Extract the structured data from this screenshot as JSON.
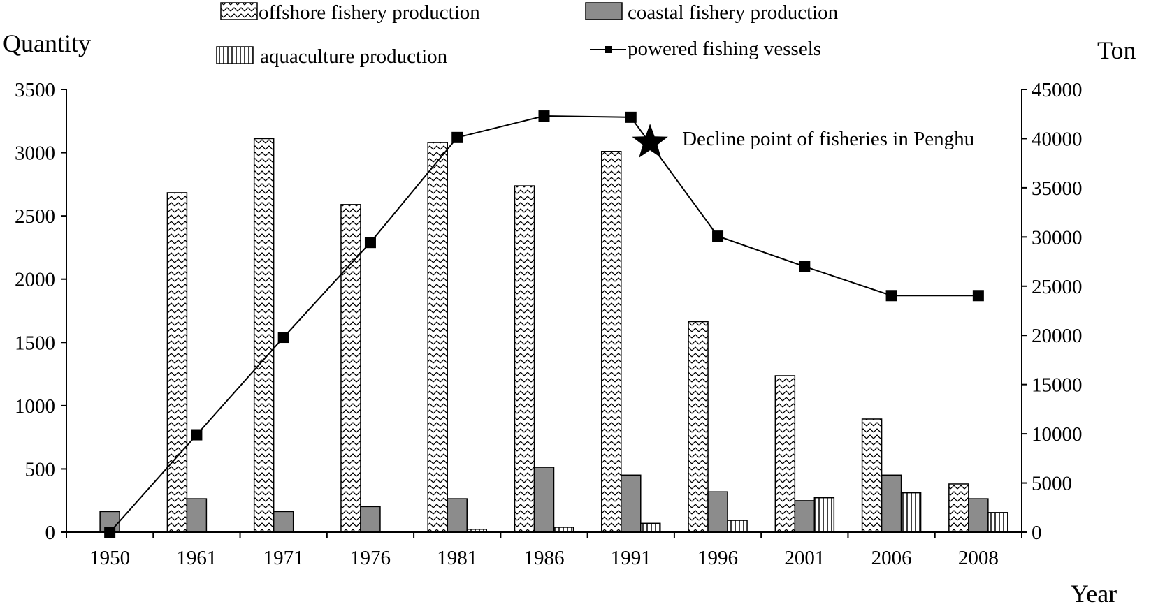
{
  "chart_data": {
    "type": "bar",
    "xlabel": "Year",
    "ylabel_left": "Quantity",
    "ylabel_right": "Ton",
    "categories": [
      "1950",
      "1961",
      "1971",
      "1976",
      "1981",
      "1986",
      "1991",
      "1996",
      "2001",
      "2006",
      "2008"
    ],
    "y_left": {
      "ylim": [
        0,
        3500
      ],
      "ticks": [
        "0",
        "500",
        "1000",
        "1500",
        "2000",
        "2500",
        "3000",
        "3500"
      ]
    },
    "y_right": {
      "ylim": [
        0,
        45000
      ],
      "ticks": [
        "0",
        "5000",
        "10000",
        "15000",
        "20000",
        "25000",
        "30000",
        "35000",
        "40000",
        "45000"
      ]
    },
    "series": [
      {
        "name": "offshore fishery production",
        "kind": "bar",
        "axis": "right",
        "fill": "zigzag",
        "values": [
          0,
          34500,
          40000,
          33300,
          39600,
          35200,
          38700,
          21400,
          15900,
          11500,
          4900
        ]
      },
      {
        "name": "coastal fishery production",
        "kind": "bar",
        "axis": "right",
        "fill": "gray",
        "values": [
          2100,
          3400,
          2100,
          2600,
          3400,
          6600,
          5800,
          4100,
          3200,
          5800,
          3400
        ]
      },
      {
        "name": "aquaculture production",
        "kind": "bar",
        "axis": "right",
        "fill": "vertical-stripes",
        "values": [
          0,
          0,
          0,
          0,
          300,
          500,
          900,
          1200,
          3500,
          4000,
          2000
        ]
      },
      {
        "name": "powered fishing vessels",
        "kind": "line",
        "axis": "left",
        "x": [
          "1950",
          "1961",
          "1971",
          "1976",
          "1981",
          "1986",
          "1991",
          "1996",
          "2001",
          "2006",
          "2008"
        ],
        "values": [
          0,
          770,
          1540,
          2290,
          3120,
          3290,
          3280,
          2340,
          2100,
          1870,
          1870
        ]
      }
    ],
    "annotation": {
      "text": "Decline point of fisheries in Penghu",
      "marker": "star",
      "x_between": [
        "1991",
        "1996"
      ],
      "y_left": 3080
    },
    "legend_position": "top",
    "grid": false
  }
}
